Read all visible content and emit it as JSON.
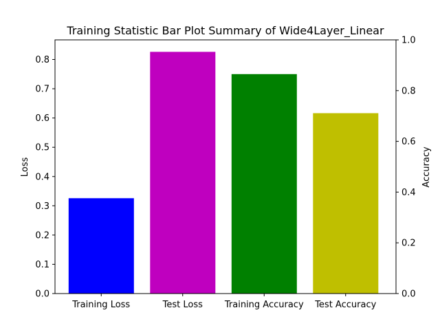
{
  "chart_data": {
    "type": "bar",
    "title": "Training Statistic Bar Plot Summary of Wide4Layer_Linear",
    "categories": [
      "Training Loss",
      "Test Loss",
      "Training Accuracy",
      "Test Accuracy"
    ],
    "series": [
      {
        "values": [
          0.326,
          0.826,
          null,
          null
        ],
        "axis": "left",
        "colors": [
          "#0000ff",
          "#bf00bf"
        ]
      },
      {
        "values": [
          null,
          null,
          0.865,
          0.711
        ],
        "axis": "right",
        "colors": [
          "#008000",
          "#bfbf00"
        ]
      }
    ],
    "left_axis": {
      "label": "Loss",
      "ylim": [
        0,
        0.867
      ],
      "ticks": [
        "0.0",
        "0.1",
        "0.2",
        "0.3",
        "0.4",
        "0.5",
        "0.6",
        "0.7",
        "0.8"
      ]
    },
    "right_axis": {
      "label": "Accuracy",
      "ylim": [
        0,
        1.0
      ],
      "ticks": [
        "0.0",
        "0.2",
        "0.4",
        "0.6",
        "0.8",
        "1.0"
      ]
    },
    "grid": false,
    "legend": "none"
  }
}
